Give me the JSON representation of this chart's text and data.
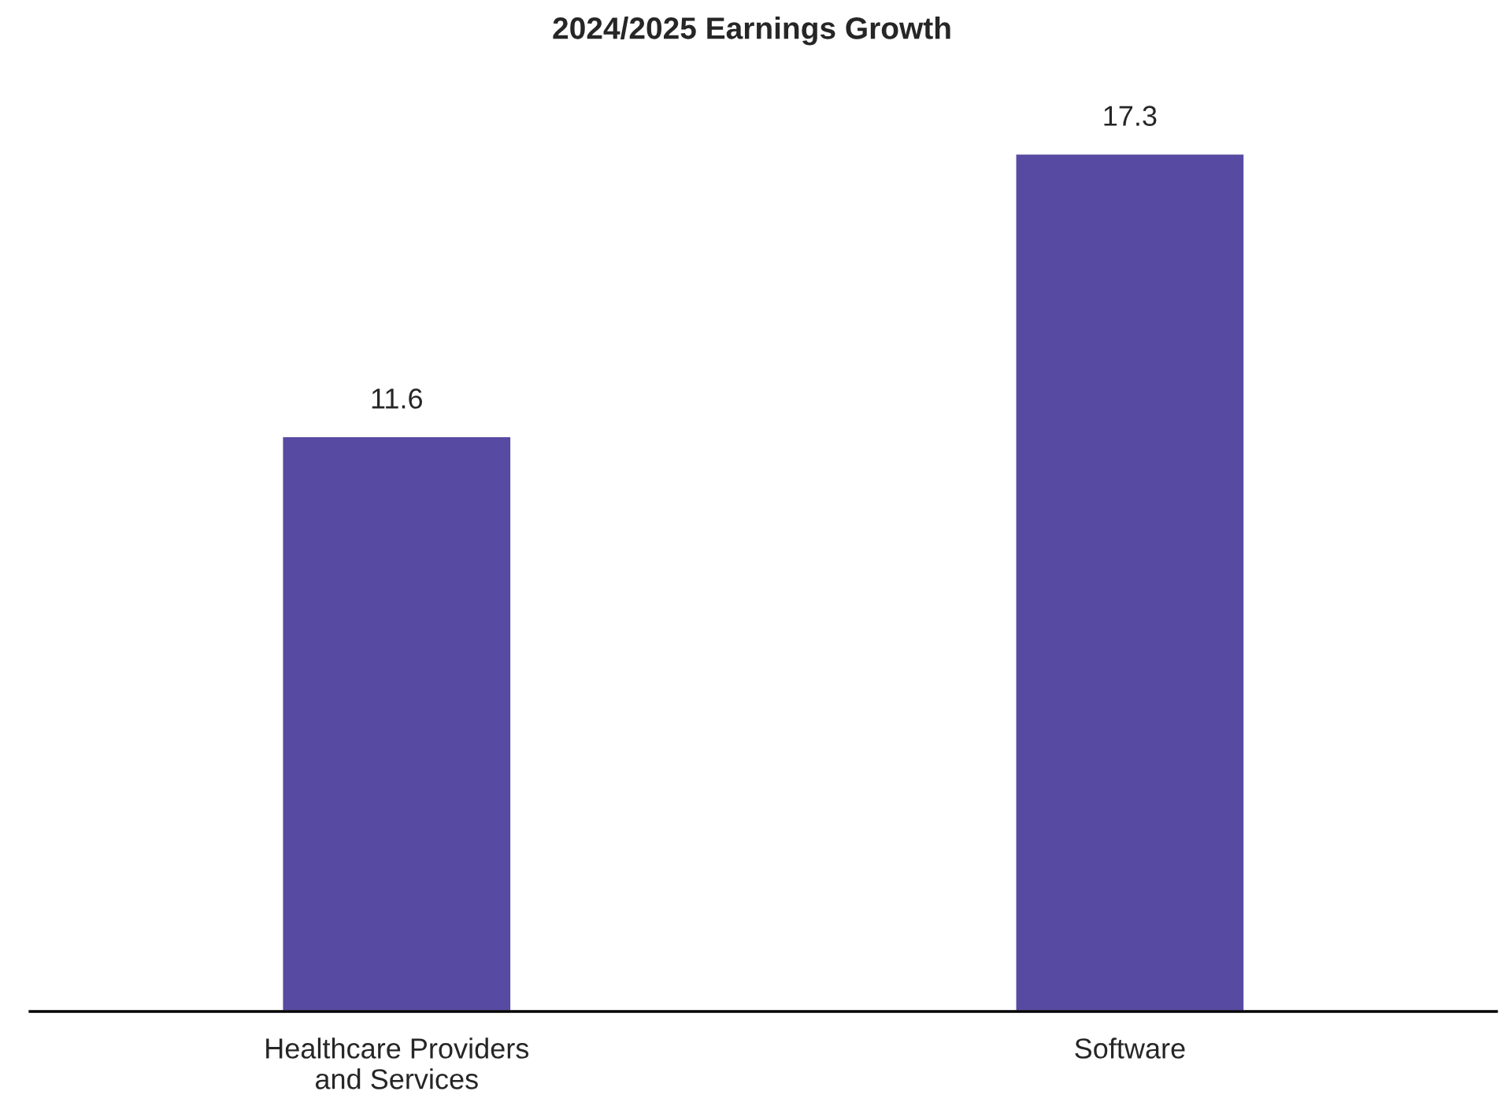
{
  "chart_data": {
    "type": "bar",
    "title": "2024/2025 Earnings Growth",
    "categories": [
      "Healthcare Providers\nand Services",
      "Software"
    ],
    "values": [
      11.6,
      17.3
    ],
    "color": "#574aa3",
    "tick_labels": "x",
    "data_labels": true,
    "grid": false,
    "legend": false
  }
}
